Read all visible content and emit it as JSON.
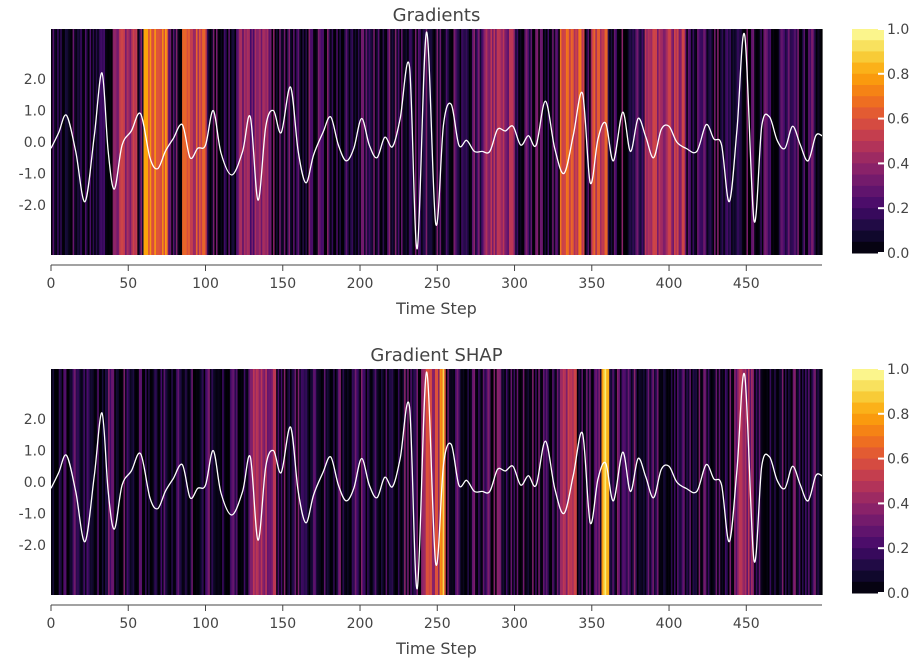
{
  "chart_data": [
    {
      "type": "heatmap",
      "title": "Gradients",
      "xlabel": "Time Step",
      "ylabel": "",
      "xlim": [
        0,
        499
      ],
      "ylim": [
        -3.6,
        3.6
      ],
      "xticks": [
        "0",
        "50",
        "100",
        "150",
        "200",
        "250",
        "300",
        "350",
        "400",
        "450"
      ],
      "xtick_values": [
        0,
        50,
        100,
        150,
        200,
        250,
        300,
        350,
        400,
        450
      ],
      "yticks": [
        "2.0",
        "1.0",
        "0.0",
        "-1.0",
        "-2.0"
      ],
      "ytick_values": [
        2,
        1,
        0,
        -1,
        -2
      ],
      "colorbar": {
        "ticks": [
          "1.0",
          "0.8",
          "0.6",
          "0.4",
          "0.2",
          "0.0"
        ],
        "tick_values": [
          1,
          0.8,
          0.6,
          0.4,
          0.2,
          0
        ],
        "colorscale": "inferno",
        "range": [
          0,
          1
        ]
      },
      "grid": false,
      "attribution_seed": 17,
      "hot_regions": [
        {
          "x": [
            40,
            55
          ],
          "level": 0.55
        },
        {
          "x": [
            60,
            75
          ],
          "level": 0.8
        },
        {
          "x": [
            85,
            100
          ],
          "level": 0.65
        },
        {
          "x": [
            120,
            140
          ],
          "level": 0.45
        },
        {
          "x": [
            280,
            300
          ],
          "level": 0.5
        },
        {
          "x": [
            330,
            345
          ],
          "level": 0.7
        },
        {
          "x": [
            350,
            360
          ],
          "level": 0.65
        },
        {
          "x": [
            385,
            410
          ],
          "level": 0.55
        }
      ],
      "series": [
        {
          "type": "line",
          "color": "#ffffff",
          "x": [
            0,
            5,
            10,
            16,
            22,
            28,
            33,
            37,
            41,
            46,
            52,
            58,
            64,
            69,
            74,
            79,
            85,
            90,
            95,
            100,
            105,
            110,
            117,
            124,
            129,
            134,
            139,
            144,
            149,
            155,
            160,
            165,
            170,
            176,
            181,
            186,
            191,
            196,
            201,
            206,
            211,
            216,
            221,
            226,
            232,
            237,
            243,
            249,
            254,
            259,
            264,
            269,
            274,
            279,
            284,
            289,
            294,
            299,
            304,
            309,
            314,
            320,
            326,
            332,
            338,
            344,
            349,
            354,
            359,
            364,
            370,
            375,
            380,
            385,
            390,
            395,
            400,
            405,
            411,
            418,
            424,
            429,
            434,
            439,
            444,
            449,
            455,
            460,
            465,
            470,
            475,
            480,
            485,
            490,
            495,
            499
          ],
          "y": [
            -0.2,
            0.3,
            0.85,
            -0.3,
            -1.9,
            0.2,
            2.2,
            -0.3,
            -1.5,
            -0.1,
            0.35,
            0.9,
            -0.5,
            -0.85,
            -0.3,
            0.1,
            0.55,
            -0.5,
            -0.2,
            -0.1,
            1.0,
            -0.35,
            -1.05,
            -0.3,
            0.8,
            -1.85,
            0.5,
            1.0,
            0.3,
            1.75,
            -0.3,
            -1.3,
            -0.4,
            0.3,
            0.8,
            -0.1,
            -0.6,
            -0.2,
            0.75,
            -0.1,
            -0.5,
            0.15,
            -0.15,
            0.75,
            2.4,
            -3.4,
            3.5,
            -2.6,
            0.55,
            1.2,
            -0.1,
            0.05,
            -0.3,
            -0.3,
            -0.3,
            0.4,
            0.35,
            0.5,
            -0.1,
            0.2,
            -0.1,
            1.3,
            -0.2,
            -1.0,
            0.2,
            1.55,
            -1.3,
            0.1,
            0.6,
            -0.6,
            0.95,
            -0.3,
            0.75,
            0.15,
            -0.5,
            0.4,
            0.5,
            0.0,
            -0.2,
            -0.3,
            0.55,
            0.1,
            -0.1,
            -1.9,
            0.4,
            3.4,
            -2.5,
            0.5,
            0.8,
            0.05,
            -0.2,
            0.5,
            -0.1,
            -0.6,
            0.2,
            0.2
          ]
        }
      ]
    },
    {
      "type": "heatmap",
      "title": "Gradient SHAP",
      "xlabel": "Time Step",
      "ylabel": "",
      "xlim": [
        0,
        499
      ],
      "ylim": [
        -3.6,
        3.6
      ],
      "xticks": [
        "0",
        "50",
        "100",
        "150",
        "200",
        "250",
        "300",
        "350",
        "400",
        "450"
      ],
      "xtick_values": [
        0,
        50,
        100,
        150,
        200,
        250,
        300,
        350,
        400,
        450
      ],
      "yticks": [
        "2.0",
        "1.0",
        "0.0",
        "-1.0",
        "-2.0"
      ],
      "ytick_values": [
        2,
        1,
        0,
        -1,
        -2
      ],
      "colorbar": {
        "ticks": [
          "1.0",
          "0.8",
          "0.6",
          "0.4",
          "0.2",
          "0.0"
        ],
        "tick_values": [
          1,
          0.8,
          0.6,
          0.4,
          0.2,
          0
        ],
        "colorscale": "inferno",
        "range": [
          0,
          1
        ]
      },
      "grid": false,
      "attribution_seed": 91,
      "hot_regions": [
        {
          "x": [
            130,
            145
          ],
          "level": 0.5
        },
        {
          "x": [
            240,
            255
          ],
          "level": 0.6
        },
        {
          "x": [
            252,
            254
          ],
          "level": 0.95
        },
        {
          "x": [
            330,
            340
          ],
          "level": 0.55
        },
        {
          "x": [
            357,
            361
          ],
          "level": 0.95
        },
        {
          "x": [
            445,
            455
          ],
          "level": 0.5
        }
      ],
      "series": [
        {
          "type": "line",
          "color": "#ffffff",
          "x": [
            0,
            5,
            10,
            16,
            22,
            28,
            33,
            37,
            41,
            46,
            52,
            58,
            64,
            69,
            74,
            79,
            85,
            90,
            95,
            100,
            105,
            110,
            117,
            124,
            129,
            134,
            139,
            144,
            149,
            155,
            160,
            165,
            170,
            176,
            181,
            186,
            191,
            196,
            201,
            206,
            211,
            216,
            221,
            226,
            232,
            237,
            243,
            249,
            254,
            259,
            264,
            269,
            274,
            279,
            284,
            289,
            294,
            299,
            304,
            309,
            314,
            320,
            326,
            332,
            338,
            344,
            349,
            354,
            359,
            364,
            370,
            375,
            380,
            385,
            390,
            395,
            400,
            405,
            411,
            418,
            424,
            429,
            434,
            439,
            444,
            449,
            455,
            460,
            465,
            470,
            475,
            480,
            485,
            490,
            495,
            499
          ],
          "y": [
            -0.2,
            0.3,
            0.85,
            -0.3,
            -1.9,
            0.2,
            2.2,
            -0.3,
            -1.5,
            -0.1,
            0.35,
            0.9,
            -0.5,
            -0.85,
            -0.3,
            0.1,
            0.55,
            -0.5,
            -0.2,
            -0.1,
            1.0,
            -0.35,
            -1.05,
            -0.3,
            0.8,
            -1.85,
            0.5,
            1.0,
            0.3,
            1.75,
            -0.3,
            -1.3,
            -0.4,
            0.3,
            0.8,
            -0.1,
            -0.6,
            -0.2,
            0.75,
            -0.1,
            -0.5,
            0.15,
            -0.15,
            0.75,
            2.4,
            -3.4,
            3.5,
            -2.6,
            0.55,
            1.2,
            -0.1,
            0.05,
            -0.3,
            -0.3,
            -0.3,
            0.4,
            0.35,
            0.5,
            -0.1,
            0.2,
            -0.1,
            1.3,
            -0.2,
            -1.0,
            0.2,
            1.55,
            -1.3,
            0.1,
            0.6,
            -0.6,
            0.95,
            -0.3,
            0.75,
            0.15,
            -0.5,
            0.4,
            0.5,
            0.0,
            -0.2,
            -0.3,
            0.55,
            0.1,
            -0.1,
            -1.9,
            0.4,
            3.4,
            -2.5,
            0.5,
            0.8,
            0.05,
            -0.2,
            0.5,
            -0.1,
            -0.6,
            0.2,
            0.2
          ]
        }
      ]
    }
  ]
}
